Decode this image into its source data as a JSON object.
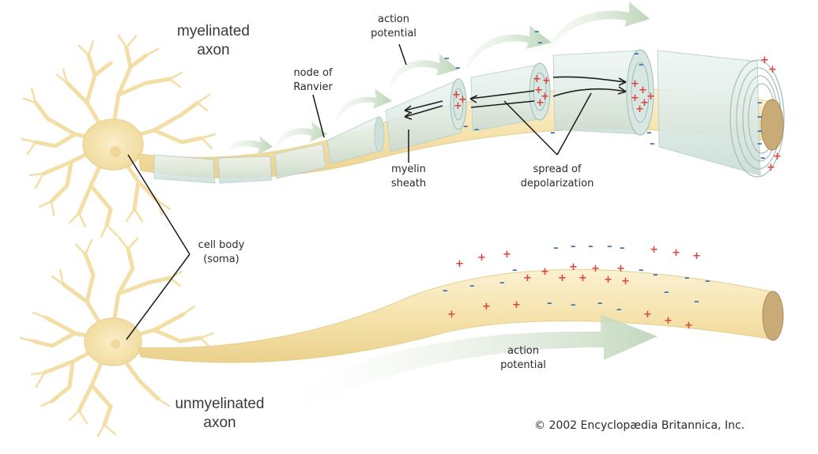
{
  "titles": {
    "myelinated_line1": "myelinated",
    "myelinated_line2": "axon",
    "unmyelinated_line1": "unmyelinated",
    "unmyelinated_line2": "axon"
  },
  "labels": {
    "action_potential_top_line1": "action",
    "action_potential_top_line2": "potential",
    "node_of_ranvier_line1": "node of",
    "node_of_ranvier_line2": "Ranvier",
    "myelin_sheath_line1": "myelin",
    "myelin_sheath_line2": "sheath",
    "spread_line1": "spread of",
    "spread_line2": "depolarization",
    "cell_body_line1": "cell body",
    "cell_body_line2": "(soma)",
    "action_potential_bottom_line1": "action",
    "action_potential_bottom_line2": "potential"
  },
  "copyright": "© 2002 Encyclopædia Britannica, Inc.",
  "colors": {
    "neuron": "#f6e6b6",
    "neuron_stroke": "#e3cf95",
    "myelin": "#dbe9e5",
    "arrow": "#c9dcc3",
    "plus": "#e0413f",
    "minus": "#2f6fb5",
    "leader": "#1a1a1a"
  }
}
